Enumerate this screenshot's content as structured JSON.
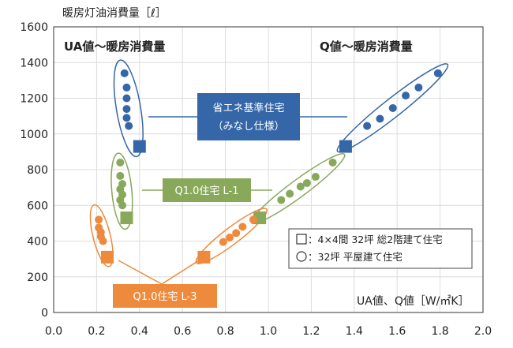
{
  "colors": {
    "blue": "#3566a8",
    "green": "#88a85a",
    "orange": "#ee8a3b",
    "grid": "#dcdcdc"
  },
  "chart_data": {
    "type": "scatter",
    "title": "暖房灯油消費量［ℓ］",
    "xlabel": "UA値、Q値［W/㎡K］",
    "ylabel": "暖房灯油消費量［ℓ］",
    "xlim": [
      0,
      2.0
    ],
    "ylim": [
      0,
      1600
    ],
    "xticks": [
      "0.0",
      "0.2",
      "0.4",
      "0.6",
      "0.8",
      "1.0",
      "1.2",
      "1.4",
      "1.6",
      "1.8",
      "2.0"
    ],
    "yticks": [
      "0",
      "200",
      "400",
      "600",
      "800",
      "1000",
      "1200",
      "1400",
      "1600"
    ],
    "grid": true,
    "left_header": "UA値〜暖房消費量",
    "right_header": "Q値〜暖房消費量",
    "series": [
      {
        "name": "省エネ基準住宅（みなし仕様）",
        "color": "#3566a8",
        "square": {
          "ua": [
            0.4,
            930
          ],
          "q": [
            1.36,
            930
          ]
        },
        "circle_ua": [
          [
            0.33,
            1340
          ],
          [
            0.34,
            1260
          ],
          [
            0.34,
            1200
          ],
          [
            0.34,
            1140
          ],
          [
            0.34,
            1090
          ],
          [
            0.35,
            1045
          ]
        ],
        "circle_q": [
          [
            1.46,
            1045
          ],
          [
            1.52,
            1085
          ],
          [
            1.58,
            1145
          ],
          [
            1.64,
            1215
          ],
          [
            1.7,
            1260
          ],
          [
            1.79,
            1340
          ]
        ]
      },
      {
        "name": "Q1.0住宅 L-1",
        "color": "#88a85a",
        "square": {
          "ua": [
            0.34,
            530
          ],
          "q": [
            0.96,
            530
          ]
        },
        "circle_ua": [
          [
            0.31,
            840
          ],
          [
            0.31,
            765
          ],
          [
            0.32,
            720
          ],
          [
            0.31,
            690
          ],
          [
            0.32,
            660
          ],
          [
            0.31,
            630
          ],
          [
            0.32,
            600
          ]
        ],
        "circle_q": [
          [
            1.06,
            630
          ],
          [
            1.1,
            665
          ],
          [
            1.15,
            705
          ],
          [
            1.18,
            725
          ],
          [
            1.22,
            760
          ],
          [
            1.3,
            840
          ]
        ]
      },
      {
        "name": "Q1.0住宅 L-3",
        "color": "#ee8a3b",
        "square": {
          "ua": [
            0.25,
            310
          ],
          "q": [
            0.7,
            310
          ]
        },
        "circle_ua": [
          [
            0.21,
            520
          ],
          [
            0.21,
            475
          ],
          [
            0.22,
            450
          ],
          [
            0.22,
            425
          ],
          [
            0.23,
            400
          ]
        ],
        "circle_q": [
          [
            0.79,
            395
          ],
          [
            0.82,
            420
          ],
          [
            0.85,
            445
          ],
          [
            0.88,
            480
          ],
          [
            0.93,
            520
          ]
        ]
      }
    ],
    "legend": [
      {
        "marker": "square",
        "text": "：4×4間 32坪 総2階建て住宅"
      },
      {
        "marker": "circle",
        "text": "：32坪 平屋建て住宅"
      }
    ]
  }
}
